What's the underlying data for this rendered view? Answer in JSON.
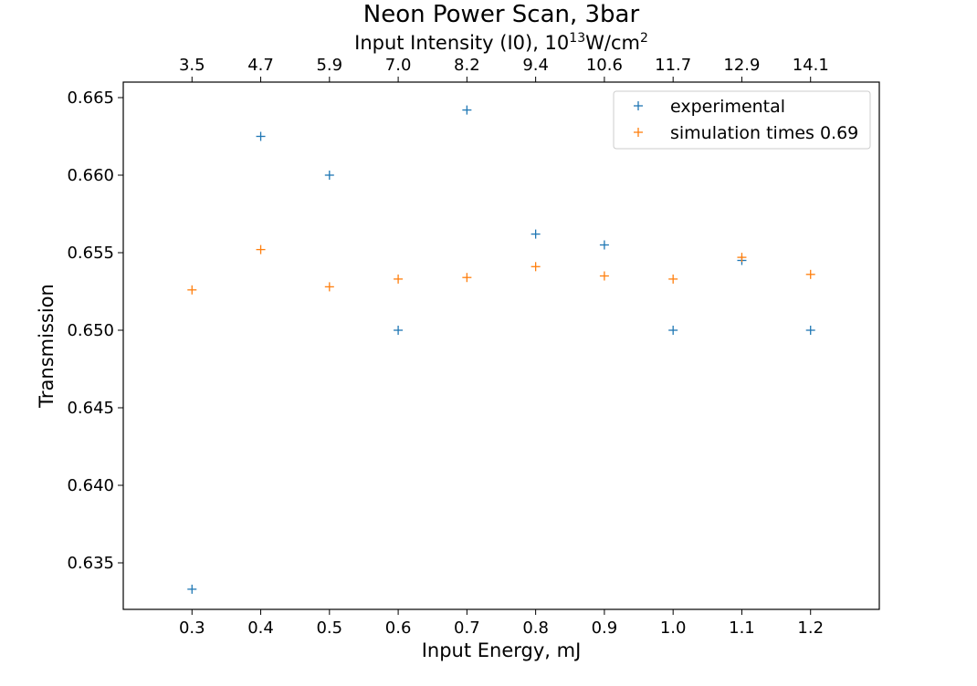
{
  "chart_data": {
    "type": "scatter",
    "title": "Neon Power Scan, 3bar",
    "xlabel": "Input Energy, mJ",
    "ylabel": "Transmission",
    "top_xlabel": {
      "prefix": "Input Intensity (I0), 10",
      "exponent": "13",
      "unit": "W/cm",
      "unit_exponent": "2"
    },
    "xlim": [
      0.2,
      1.3
    ],
    "ylim": [
      0.632,
      0.666
    ],
    "x_ticks": [
      "0.3",
      "0.4",
      "0.5",
      "0.6",
      "0.7",
      "0.8",
      "0.9",
      "1.0",
      "1.1",
      "1.2"
    ],
    "top_x_ticks": [
      "3.5",
      "4.7",
      "5.9",
      "7.0",
      "8.2",
      "9.4",
      "10.6",
      "11.7",
      "12.9",
      "14.1"
    ],
    "y_ticks": [
      "0.635",
      "0.640",
      "0.645",
      "0.650",
      "0.655",
      "0.660",
      "0.665"
    ],
    "grid": false,
    "legend_position": "top-right",
    "series": [
      {
        "name": "experimental",
        "color": "#1f77b4",
        "marker": "+",
        "x": [
          0.3,
          0.4,
          0.5,
          0.6,
          0.7,
          0.8,
          0.9,
          1.0,
          1.1,
          1.2
        ],
        "y": [
          0.6333,
          0.6625,
          0.66,
          0.65,
          0.6642,
          0.6562,
          0.6555,
          0.65,
          0.6545,
          0.65
        ]
      },
      {
        "name": "simulation times 0.69",
        "color": "#ff7f0e",
        "marker": "+",
        "x": [
          0.3,
          0.4,
          0.5,
          0.6,
          0.7,
          0.8,
          0.9,
          1.0,
          1.1,
          1.2
        ],
        "y": [
          0.6526,
          0.6552,
          0.6528,
          0.6533,
          0.6534,
          0.6541,
          0.6535,
          0.6533,
          0.6547,
          0.6536
        ]
      }
    ]
  }
}
